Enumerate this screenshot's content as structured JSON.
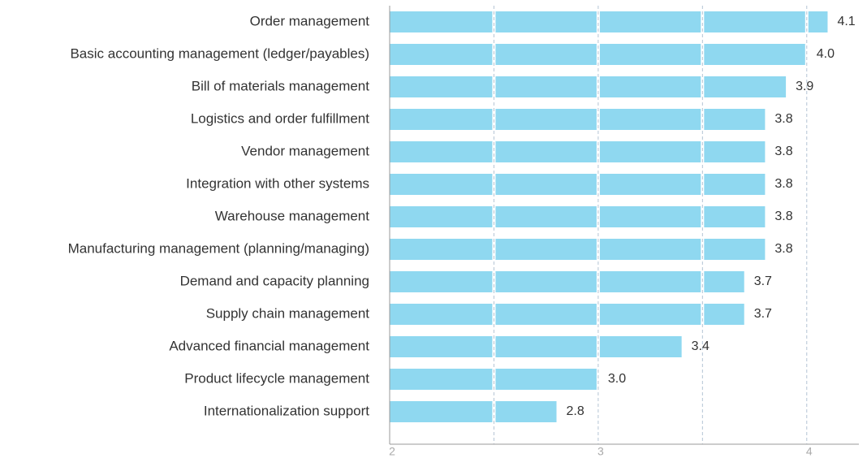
{
  "chart_data": {
    "type": "barh",
    "categories": [
      "Order management",
      "Basic accounting management (ledger/payables)",
      "Bill of materials management",
      "Logistics and order fulfillment",
      "Vendor management",
      "Integration with other systems",
      "Warehouse management",
      "Manufacturing management (planning/managing)",
      "Demand and capacity planning",
      "Supply chain management",
      "Advanced financial management",
      "Product lifecycle management",
      "Internationalization support"
    ],
    "values": [
      4.1,
      4.0,
      3.9,
      3.8,
      3.8,
      3.8,
      3.8,
      3.8,
      3.7,
      3.7,
      3.4,
      3.0,
      2.8
    ],
    "value_labels": [
      "4.1",
      "4.0",
      "3.9",
      "3.8",
      "3.8",
      "3.8",
      "3.8",
      "3.8",
      "3.7",
      "3.7",
      "3.4",
      "3.0",
      "2.8"
    ],
    "color": "#8fd8f0",
    "xlim": [
      2,
      4.25
    ],
    "xticks": [
      2,
      3,
      4
    ],
    "xgrid": [
      2.5,
      3,
      3.5,
      4
    ],
    "grid": true
  }
}
